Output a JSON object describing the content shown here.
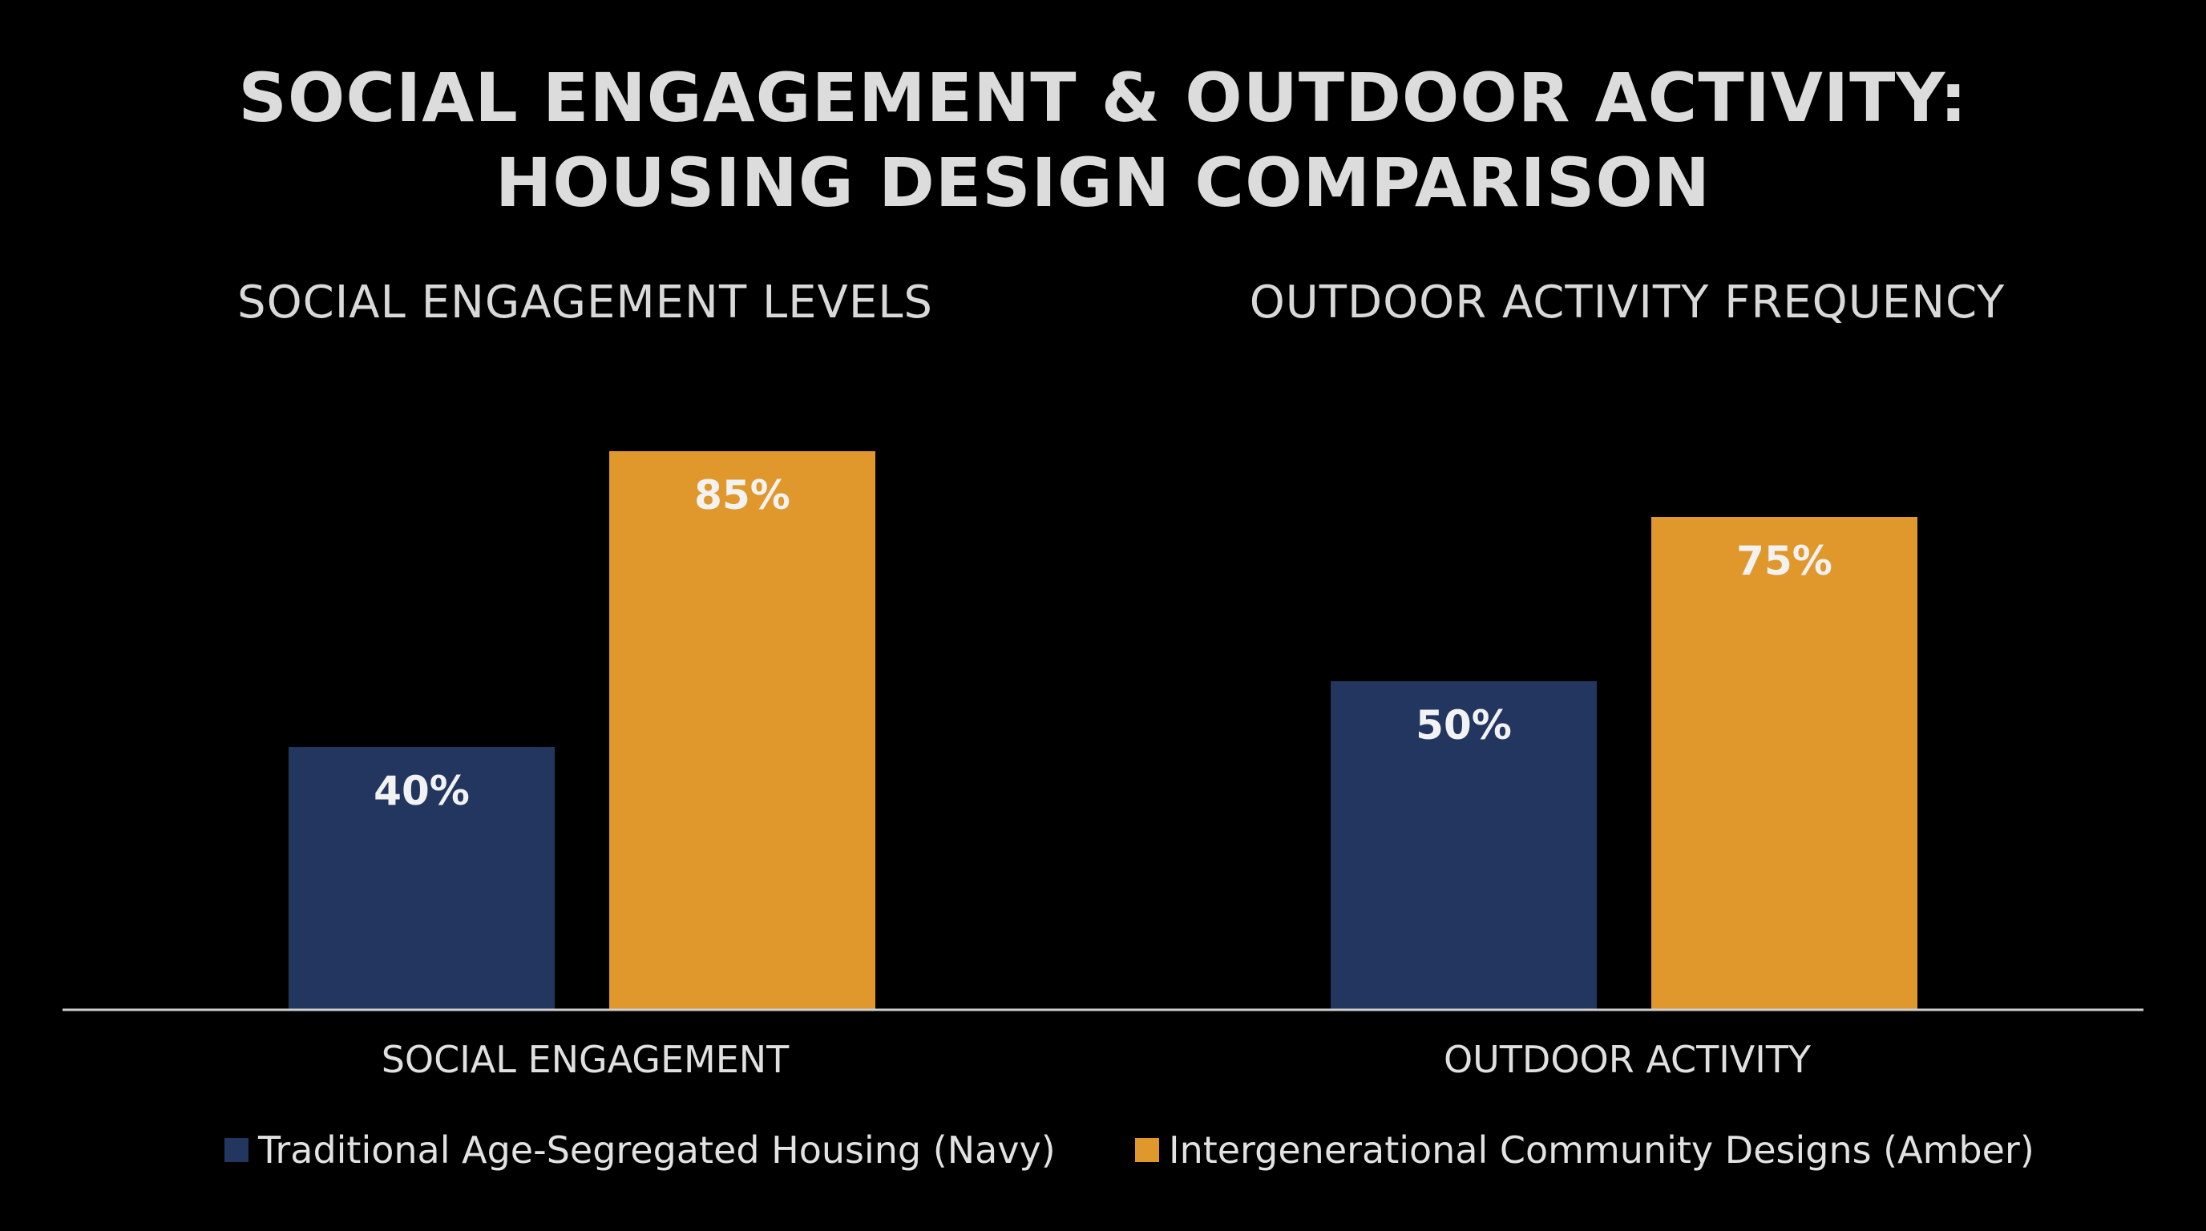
{
  "chart_data": {
    "type": "bar",
    "title": "SOCIAL ENGAGEMENT & OUTDOOR ACTIVITY: HOUSING DESIGN COMPARISON",
    "title_lines": [
      "SOCIAL ENGAGEMENT & OUTDOOR ACTIVITY:",
      "HOUSING DESIGN COMPARISON"
    ],
    "legend_placement": "bottom",
    "grid": false,
    "series": [
      {
        "name": "Traditional Age-Segregated Housing (Navy)",
        "color": "#22365f"
      },
      {
        "name": "Intergenerational Community Designs (Amber)",
        "color": "#e0982c"
      }
    ],
    "panels": [
      {
        "subtitle": "SOCIAL ENGAGEMENT LEVELS",
        "category": "SOCIAL ENGAGEMENT",
        "values": [
          40,
          85
        ],
        "value_labels": [
          "40%",
          "85%"
        ]
      },
      {
        "subtitle": "OUTDOOR ACTIVITY FREQUENCY",
        "category": "OUTDOOR ACTIVITY",
        "values": [
          50,
          75
        ],
        "value_labels": [
          "50%",
          "75%"
        ]
      }
    ],
    "ylim": [
      0,
      100
    ]
  }
}
